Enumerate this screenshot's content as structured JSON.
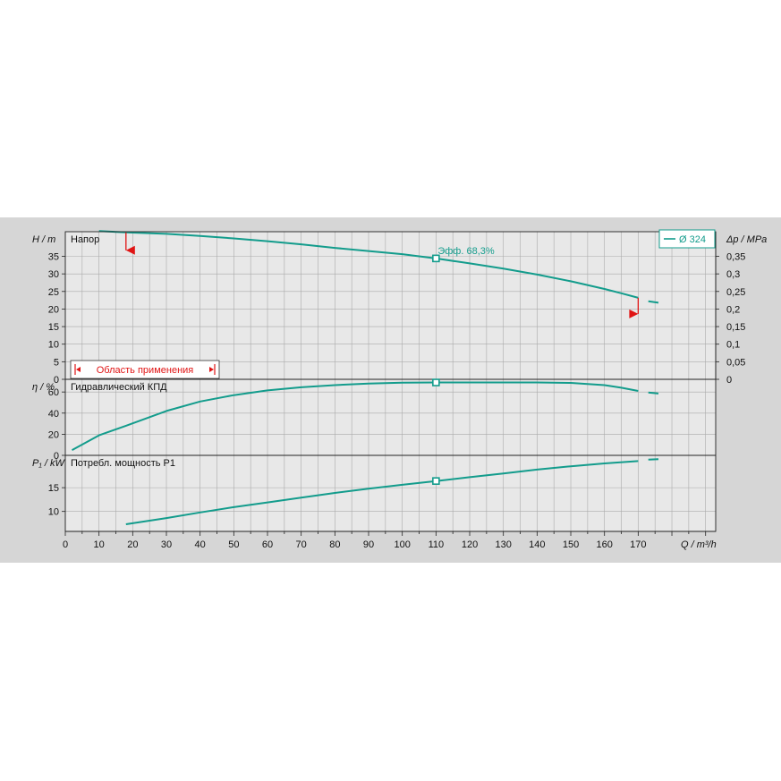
{
  "chart_data": {
    "type": "line",
    "title": "",
    "legend": {
      "label": "Ø 324",
      "position": "top-right"
    },
    "colors": {
      "curve": "#139c8c",
      "limit_marker": "#e01414",
      "grid": "#aaaaaa",
      "plot_bg": "#e8e8e8"
    },
    "x": {
      "label": "Q / m³/h",
      "range": [
        0,
        193
      ],
      "ticks": [
        0,
        10,
        20,
        30,
        40,
        50,
        60,
        70,
        80,
        90,
        100,
        110,
        120,
        130,
        140,
        150,
        160,
        170
      ]
    },
    "duty_point": {
      "q": 110
    },
    "application_range": {
      "label": "Область применения",
      "q_min": 18,
      "q_max": 170
    },
    "panels": [
      {
        "id": "head",
        "title": "Напор",
        "ylabel_left": "H / m",
        "ylabel_right": "Δp / MPa",
        "ylim": [
          0,
          42
        ],
        "yticks": [
          0,
          5,
          10,
          15,
          20,
          25,
          30,
          35
        ],
        "yticks_right": [
          {
            "value": 0,
            "label": "0"
          },
          {
            "value": 0.05,
            "label": "0,05"
          },
          {
            "value": 0.1,
            "label": "0,1"
          },
          {
            "value": 0.15,
            "label": "0,15"
          },
          {
            "value": 0.2,
            "label": "0,2"
          },
          {
            "value": 0.25,
            "label": "0,25"
          },
          {
            "value": 0.3,
            "label": "0,3"
          },
          {
            "value": 0.35,
            "label": "0,35"
          }
        ],
        "annotation": "Эфф.  68,3%",
        "series": [
          {
            "x": [
              10,
              18,
              30,
              40,
              50,
              60,
              70,
              80,
              90,
              100,
              110,
              120,
              130,
              140,
              150,
              160,
              165,
              170
            ],
            "values": [
              42.2,
              41.8,
              41.4,
              40.8,
              40.1,
              39.3,
              38.4,
              37.4,
              36.5,
              35.6,
              34.4,
              33.0,
              31.5,
              29.8,
              27.9,
              25.7,
              24.5,
              23.2
            ]
          },
          {
            "x": [
              173,
              176
            ],
            "values": [
              22.2,
              21.8
            ]
          }
        ]
      },
      {
        "id": "efficiency",
        "title": "Гидравлический КПД",
        "ylabel_left": "η / %",
        "ylim": [
          0,
          72
        ],
        "yticks": [
          0,
          20,
          40,
          60
        ],
        "series": [
          {
            "x": [
              2,
              10,
              18,
              30,
              40,
              50,
              60,
              70,
              80,
              90,
              100,
              110,
              120,
              130,
              140,
              150,
              160,
              165,
              170
            ],
            "values": [
              5,
              19,
              28,
              42,
              51,
              57,
              61.5,
              64.5,
              66.5,
              68,
              68.8,
              69,
              69,
              69,
              69,
              68.6,
              66.5,
              64,
              61
            ]
          },
          {
            "x": [
              173,
              176
            ],
            "values": [
              59.5,
              58.5
            ]
          }
        ]
      },
      {
        "id": "power",
        "title": "Потребл. мощность P1",
        "ylabel_left": "P₁ / kW",
        "ylim": [
          5.8,
          21.8
        ],
        "yticks": [
          10,
          15
        ],
        "series": [
          {
            "x": [
              18,
              30,
              40,
              50,
              60,
              70,
              80,
              90,
              100,
              110,
              120,
              130,
              140,
              150,
              160,
              170
            ],
            "values": [
              7.3,
              8.6,
              9.8,
              10.9,
              11.9,
              12.9,
              13.9,
              14.8,
              15.6,
              16.4,
              17.2,
              18.0,
              18.8,
              19.5,
              20.1,
              20.6
            ]
          },
          {
            "x": [
              173,
              176
            ],
            "values": [
              20.9,
              21.0
            ]
          }
        ]
      }
    ]
  }
}
